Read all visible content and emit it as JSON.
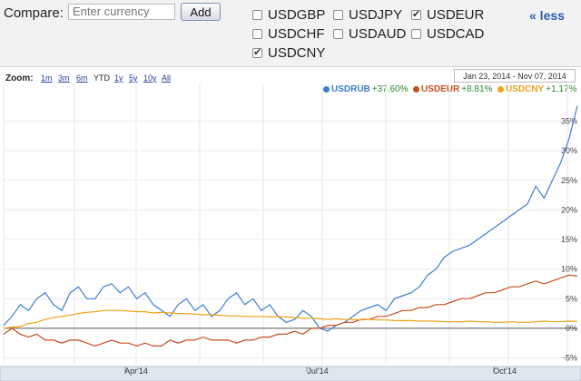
{
  "compare": {
    "label": "Compare:",
    "input_placeholder": "Enter currency",
    "add_label": "Add",
    "less_label": "« less",
    "currencies": [
      {
        "code": "USDGBP",
        "checked": false
      },
      {
        "code": "USDJPY",
        "checked": false
      },
      {
        "code": "USDEUR",
        "checked": true
      },
      {
        "code": "USDCHF",
        "checked": false
      },
      {
        "code": "USDAUD",
        "checked": false
      },
      {
        "code": "USDCAD",
        "checked": false
      },
      {
        "code": "USDCNY",
        "checked": true
      }
    ]
  },
  "zoom": {
    "label": "Zoom:",
    "options": [
      "1m",
      "3m",
      "6m",
      "YTD",
      "1y",
      "5y",
      "10y",
      "All"
    ],
    "selected": "YTD"
  },
  "date_range": "Jan 23, 2014  -  Nov 07, 2014",
  "chart_data": {
    "type": "line",
    "x_ticks": [
      "Apr'14",
      "Jul'14",
      "Oct'14"
    ],
    "y_ticks": [
      "35%",
      "30%",
      "25%",
      "20%",
      "15%",
      "10%",
      "5%",
      "0%",
      "-5%"
    ],
    "ylim": [
      -6,
      38
    ],
    "series": [
      {
        "name": "USDRUB",
        "change": "+37.60%",
        "color": "#3b7fd1",
        "values": [
          0.5,
          2,
          4,
          3,
          5,
          6,
          4,
          3,
          6,
          7,
          5,
          5,
          7,
          7.5,
          6,
          7,
          5,
          6,
          4,
          3,
          2,
          4,
          5,
          3,
          4,
          2,
          3,
          5,
          6,
          4,
          5,
          3,
          4,
          2,
          1,
          1.5,
          3,
          2,
          0,
          -0.5,
          0.5,
          1,
          2,
          3,
          3.5,
          4,
          3,
          5,
          5.5,
          6,
          7,
          9,
          10,
          12,
          13,
          13.5,
          14,
          15,
          16,
          17,
          18,
          19,
          20,
          21,
          24,
          22,
          25,
          28,
          32,
          37.6
        ]
      },
      {
        "name": "USDEUR",
        "change": "+8.81%",
        "color": "#c94e1e",
        "values": [
          -1,
          0,
          -1,
          -1.5,
          -1,
          -2,
          -2,
          -2.5,
          -2,
          -2,
          -2.5,
          -3,
          -2.5,
          -2,
          -2.5,
          -2.5,
          -3,
          -2.5,
          -3,
          -3,
          -2,
          -2.5,
          -2,
          -2,
          -1.5,
          -2,
          -2,
          -2,
          -2.5,
          -2,
          -2,
          -1.5,
          -1.5,
          -1,
          -1,
          -0.5,
          -1,
          0,
          0,
          0.5,
          0.5,
          1,
          1,
          1.5,
          1.5,
          2,
          2,
          2.5,
          3,
          3,
          3.5,
          3.5,
          4,
          4,
          4.5,
          5,
          5,
          5.5,
          6,
          6,
          6.5,
          7,
          7,
          7.5,
          8,
          7.5,
          8,
          8.5,
          9,
          8.81
        ]
      },
      {
        "name": "USDCNY",
        "change": "+1.17%",
        "color": "#f0a21a",
        "values": [
          0,
          0.2,
          0.3,
          0.8,
          1,
          1.5,
          1.8,
          2,
          2.2,
          2.5,
          2.7,
          2.8,
          3,
          3,
          3,
          2.9,
          2.8,
          2.8,
          2.6,
          2.7,
          2.6,
          2.5,
          2.5,
          2.4,
          2.3,
          2.3,
          2.2,
          2.1,
          2.1,
          2,
          2,
          2,
          1.9,
          2,
          1.9,
          1.8,
          1.7,
          1.7,
          1.6,
          1.5,
          1.6,
          1.5,
          1.5,
          1.4,
          1.5,
          1.4,
          1.4,
          1.3,
          1.3,
          1.3,
          1.2,
          1.2,
          1.2,
          1.1,
          1.1,
          1.1,
          1.2,
          1.1,
          1.1,
          1.0,
          1.0,
          1.1,
          1.0,
          1.0,
          1.1,
          1.2,
          1.1,
          1.1,
          1.2,
          1.17
        ]
      }
    ]
  }
}
